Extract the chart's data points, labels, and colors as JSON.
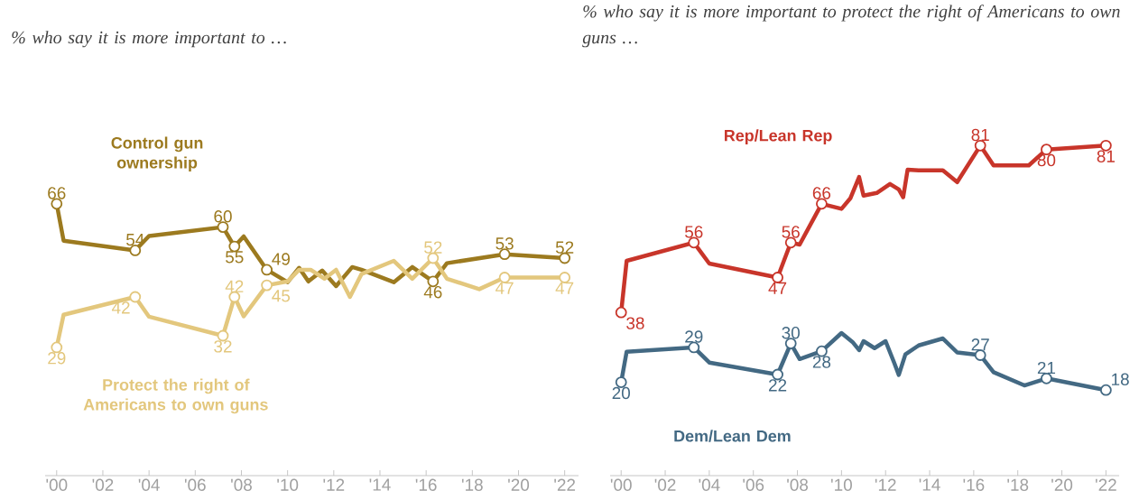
{
  "chart_data": [
    {
      "type": "line",
      "title": "% who say it is more important to …",
      "xlim": [
        1999.5,
        2022.6
      ],
      "tick_labels": "x",
      "line_style": "solid",
      "xticks": [
        {
          "value": 2000,
          "label": "'00"
        },
        {
          "value": 2002,
          "label": "'02"
        },
        {
          "value": 2004,
          "label": "'04"
        },
        {
          "value": 2006,
          "label": "'06"
        },
        {
          "value": 2008,
          "label": "'08"
        },
        {
          "value": 2010,
          "label": "'10"
        },
        {
          "value": 2012,
          "label": "'12"
        },
        {
          "value": 2014,
          "label": "'14"
        },
        {
          "value": 2016,
          "label": "'16"
        },
        {
          "value": 2018,
          "label": "'18"
        },
        {
          "value": 2020,
          "label": "'20"
        },
        {
          "value": 2022,
          "label": "'22"
        }
      ],
      "series": [
        {
          "name": "Control gun ownership",
          "color": "#9c7a1f",
          "x": [
            2000.0,
            2000.3,
            2003.4,
            2004.0,
            2007.2,
            2007.7,
            2008.1,
            2009.1,
            2010.0,
            2010.5,
            2010.9,
            2011.5,
            2012.1,
            2012.8,
            2013.2,
            2014.6,
            2015.4,
            2016.3,
            2016.9,
            2019.4,
            2022.0
          ],
          "values": [
            66,
            56.5,
            54,
            57.7,
            60,
            55,
            57.6,
            49,
            45.8,
            49.5,
            46,
            48.8,
            44.8,
            49.7,
            49,
            45.8,
            49.7,
            46,
            50.7,
            53,
            52
          ],
          "value_labels": [
            "66",
            null,
            "54",
            null,
            "60",
            "55",
            null,
            "49",
            null,
            null,
            null,
            null,
            null,
            null,
            null,
            null,
            null,
            "46",
            null,
            "53",
            "52"
          ]
        },
        {
          "name": "Protect the right of Americans to own guns",
          "color": "#e3c77d",
          "x": [
            2000.0,
            2000.3,
            2003.4,
            2004.0,
            2007.2,
            2007.7,
            2008.1,
            2009.1,
            2010.0,
            2010.5,
            2011.0,
            2011.6,
            2012.1,
            2012.7,
            2013.2,
            2014.6,
            2015.4,
            2016.3,
            2016.9,
            2018.3,
            2019.4,
            2022.0
          ],
          "values": [
            29,
            37.4,
            42,
            36.9,
            32,
            42,
            37,
            45,
            46,
            49,
            49,
            46.7,
            49,
            42,
            47.9,
            51.3,
            46.7,
            52,
            46.7,
            44,
            47,
            47
          ],
          "value_labels": [
            "29",
            null,
            "42",
            null,
            "32",
            "42",
            null,
            "45",
            null,
            null,
            null,
            null,
            null,
            null,
            null,
            null,
            null,
            "52",
            null,
            null,
            "47",
            "47"
          ]
        }
      ]
    },
    {
      "type": "line",
      "title": "% who say it is more important to protect the right of Americans to own guns …",
      "xlim": [
        1999.5,
        2022.6
      ],
      "tick_labels": "x",
      "line_style": "solid",
      "xticks": [
        {
          "value": 2000,
          "label": "'00"
        },
        {
          "value": 2002,
          "label": "'02"
        },
        {
          "value": 2004,
          "label": "'04"
        },
        {
          "value": 2006,
          "label": "'06"
        },
        {
          "value": 2008,
          "label": "'08"
        },
        {
          "value": 2010,
          "label": "'10"
        },
        {
          "value": 2012,
          "label": "'12"
        },
        {
          "value": 2014,
          "label": "'14"
        },
        {
          "value": 2016,
          "label": "'16"
        },
        {
          "value": 2018,
          "label": "'18"
        },
        {
          "value": 2020,
          "label": "'20"
        },
        {
          "value": 2022,
          "label": "'22"
        }
      ],
      "series": [
        {
          "name": "Rep/Lean Rep",
          "color": "#c8352a",
          "x": [
            2000.0,
            2000.25,
            2003.3,
            2004.0,
            2007.1,
            2007.7,
            2008.1,
            2009.1,
            2010.0,
            2010.4,
            2010.8,
            2011.0,
            2011.6,
            2012.2,
            2012.6,
            2012.8,
            2013.0,
            2013.5,
            2014.6,
            2015.25,
            2016.3,
            2016.9,
            2018.5,
            2019.3,
            2022.0
          ],
          "values": [
            38,
            51.3,
            56,
            50.6,
            47,
            56,
            55.5,
            66,
            64.7,
            67.4,
            72.9,
            68.1,
            68.8,
            71.1,
            69.7,
            67.7,
            74.8,
            74.6,
            74.6,
            71.6,
            81,
            75.9,
            75.9,
            80,
            81
          ],
          "value_labels": [
            "38",
            null,
            "56",
            null,
            "47",
            "56",
            null,
            "66",
            null,
            null,
            null,
            null,
            null,
            null,
            null,
            null,
            null,
            null,
            null,
            null,
            "81",
            null,
            null,
            "80",
            "81"
          ]
        },
        {
          "name": "Dem/Lean Dem",
          "color": "#436983",
          "x": [
            2000.0,
            2000.25,
            2003.3,
            2004.0,
            2007.1,
            2007.7,
            2008.1,
            2009.1,
            2010.0,
            2010.5,
            2010.8,
            2011.0,
            2011.5,
            2012.0,
            2012.4,
            2012.6,
            2012.9,
            2013.5,
            2014.6,
            2015.25,
            2016.3,
            2016.9,
            2018.3,
            2019.3,
            2022.0
          ],
          "values": [
            20,
            27.9,
            29,
            25.1,
            22,
            30,
            26,
            28,
            32.7,
            30.4,
            28.3,
            30.6,
            28.8,
            30.6,
            24.9,
            21.9,
            27.2,
            29.5,
            31.3,
            27.7,
            27,
            22.6,
            19.2,
            21,
            18
          ],
          "value_labels": [
            "20",
            null,
            "29",
            null,
            "22",
            "30",
            null,
            "28",
            null,
            null,
            null,
            null,
            null,
            null,
            null,
            null,
            null,
            null,
            null,
            null,
            "27",
            null,
            null,
            "21",
            "18"
          ]
        }
      ]
    }
  ]
}
